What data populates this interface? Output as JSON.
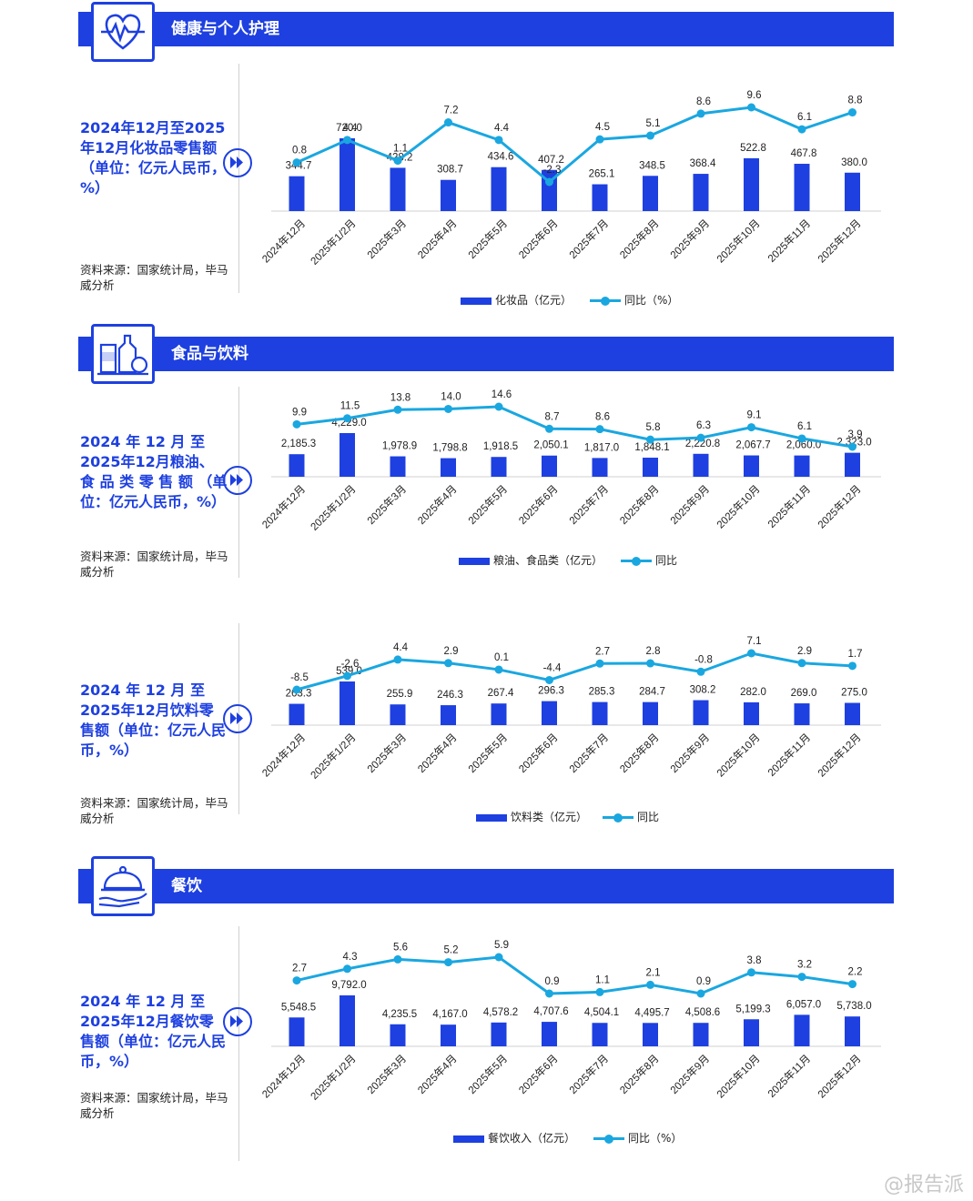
{
  "watermark": "@报告派",
  "colors": {
    "bar": "#1e40e0",
    "line": "#1aa7e0",
    "title": "#1e40e0"
  },
  "sections": {
    "health": {
      "title": "健康与个人护理",
      "icon": "heart-monitor-icon"
    },
    "food": {
      "title": "食品与饮料",
      "icon": "food-bottles-icon"
    },
    "catering": {
      "title": "餐饮",
      "icon": "serving-cloche-icon"
    }
  },
  "panels": [
    {
      "title": "2024年12月至2025年12月化妆品零售额（单位：亿元人民币，%）",
      "source": "资料来源：国家统计局，毕马威分析"
    },
    {
      "title": "2024 年 12 月 至 2025年12月粮油、食 品 类 零 售 额 （单位：亿元人民币，%）",
      "source": "资料来源：国家统计局，毕马威分析"
    },
    {
      "title": "2024 年 12 月 至 2025年12月饮料零售额（单位：亿元人民币，%）",
      "source": "资料来源：国家统计局，毕马威分析"
    },
    {
      "title": "2024 年 12 月 至 2025年12月餐饮零售额（单位：亿元人民币，%）",
      "source": "资料来源：国家统计局，毕马威分析"
    }
  ],
  "chart_data": [
    {
      "type": "bar",
      "categories": [
        "2024年12月",
        "2025年1/2月",
        "2025年3月",
        "2025年4月",
        "2025年5月",
        "2025年6月",
        "2025年7月",
        "2025年8月",
        "2025年9月",
        "2025年10月",
        "2025年11月",
        "2025年12月"
      ],
      "series": [
        {
          "name": "化妆品（亿元）",
          "type": "bar",
          "values": [
            344.7,
            720.0,
            428.2,
            308.7,
            434.6,
            407.2,
            265.1,
            348.5,
            368.4,
            522.8,
            467.8,
            380.0
          ],
          "labels": [
            "344.7",
            "720.0",
            "428.2",
            "308.7",
            "434.6",
            "407.2",
            "265.1",
            "348.5",
            "368.4",
            "522.8",
            "467.8",
            "380.0"
          ]
        },
        {
          "name": "同比（%）",
          "type": "line",
          "values": [
            0.8,
            4.4,
            1.1,
            7.2,
            4.4,
            -2.3,
            4.5,
            5.1,
            8.6,
            9.6,
            6.1,
            8.8
          ],
          "labels": [
            "0.8",
            "4.4",
            "1.1",
            "7.2",
            "4.4",
            "-2.3",
            "4.5",
            "5.1",
            "8.6",
            "9.6",
            "6.1",
            "8.8"
          ]
        }
      ],
      "bar_range": [
        0,
        1100
      ],
      "line_range": [
        -2.3,
        9.6
      ]
    },
    {
      "type": "bar",
      "categories": [
        "2024年12月",
        "2025年1/2月",
        "2025年3月",
        "2025年4月",
        "2025年5月",
        "2025年6月",
        "2025年7月",
        "2025年8月",
        "2025年9月",
        "2025年10月",
        "2025年11月",
        "2025年12月"
      ],
      "series": [
        {
          "name": "粮油、食品类（亿元）",
          "type": "bar",
          "values": [
            2185.3,
            4229.0,
            1978.9,
            1798.8,
            1918.5,
            2050.1,
            1817.0,
            1848.1,
            2220.8,
            2067.7,
            2060.0,
            2323.0
          ],
          "labels": [
            "2,185.3",
            "4,229.0",
            "1,978.9",
            "1,798.8",
            "1,918.5",
            "2,050.1",
            "1,817.0",
            "1,848.1",
            "2,220.8",
            "2,067.7",
            "2,060.0",
            "2,323.0"
          ]
        },
        {
          "name": "同比",
          "type": "line",
          "values": [
            9.9,
            11.5,
            13.8,
            14.0,
            14.6,
            8.7,
            8.6,
            5.8,
            6.3,
            9.1,
            6.1,
            3.9
          ],
          "labels": [
            "9.9",
            "11.5",
            "13.8",
            "14.0",
            "14.6",
            "8.7",
            "8.6",
            "5.8",
            "6.3",
            "9.1",
            "6.1",
            "3.9"
          ]
        }
      ],
      "bar_range": [
        0,
        4400
      ],
      "line_range": [
        3.9,
        14.6
      ]
    },
    {
      "type": "bar",
      "categories": [
        "2024年12月",
        "2025年1/2月",
        "2025年3月",
        "2025年4月",
        "2025年5月",
        "2025年6月",
        "2025年7月",
        "2025年8月",
        "2025年9月",
        "2025年10月",
        "2025年11月",
        "2025年12月"
      ],
      "series": [
        {
          "name": "饮料类（亿元）",
          "type": "bar",
          "values": [
            263.3,
            539.0,
            255.9,
            246.3,
            267.4,
            296.3,
            285.3,
            284.7,
            308.2,
            282.0,
            269.0,
            275.0
          ],
          "labels": [
            "263.3",
            "539.0",
            "255.9",
            "246.3",
            "267.4",
            "296.3",
            "285.3",
            "284.7",
            "308.2",
            "282.0",
            "269.0",
            "275.0"
          ]
        },
        {
          "name": "同比",
          "type": "line",
          "values": [
            -8.5,
            -2.6,
            4.4,
            2.9,
            0.1,
            -4.4,
            2.7,
            2.8,
            -0.8,
            7.1,
            2.9,
            1.7
          ],
          "labels": [
            "-8.5",
            "-2.6",
            "4.4",
            "2.9",
            "0.1",
            "-4.4",
            "2.7",
            "2.8",
            "-0.8",
            "7.1",
            "2.9",
            "1.7"
          ]
        }
      ],
      "bar_range": [
        0,
        560
      ],
      "line_range": [
        -8.5,
        7.1
      ]
    },
    {
      "type": "bar",
      "categories": [
        "2024年12月",
        "2025年1/2月",
        "2025年3月",
        "2025年4月",
        "2025年5月",
        "2025年6月",
        "2025年7月",
        "2025年8月",
        "2025年9月",
        "2025年10月",
        "2025年11月",
        "2025年12月"
      ],
      "series": [
        {
          "name": "餐饮收入（亿元）",
          "type": "bar",
          "values": [
            5548.5,
            9792.0,
            4235.5,
            4167.0,
            4578.2,
            4707.6,
            4504.1,
            4495.7,
            4508.6,
            5199.3,
            6057.0,
            5738.0
          ],
          "labels": [
            "5,548.5",
            "9,792.0",
            "4,235.5",
            "4,167.0",
            "4,578.2",
            "4,707.6",
            "4,504.1",
            "4,495.7",
            "4,508.6",
            "5,199.3",
            "6,057.0",
            "5,738.0"
          ]
        },
        {
          "name": "同比（%）",
          "type": "line",
          "values": [
            2.7,
            4.3,
            5.6,
            5.2,
            5.9,
            0.9,
            1.1,
            2.1,
            0.9,
            3.8,
            3.2,
            2.2
          ],
          "labels": [
            "2.7",
            "4.3",
            "5.6",
            "5.2",
            "5.9",
            "0.9",
            "1.1",
            "2.1",
            "0.9",
            "3.8",
            "3.2",
            "2.2"
          ]
        }
      ],
      "bar_range": [
        0,
        10500
      ],
      "line_range": [
        0.9,
        5.9
      ]
    }
  ]
}
